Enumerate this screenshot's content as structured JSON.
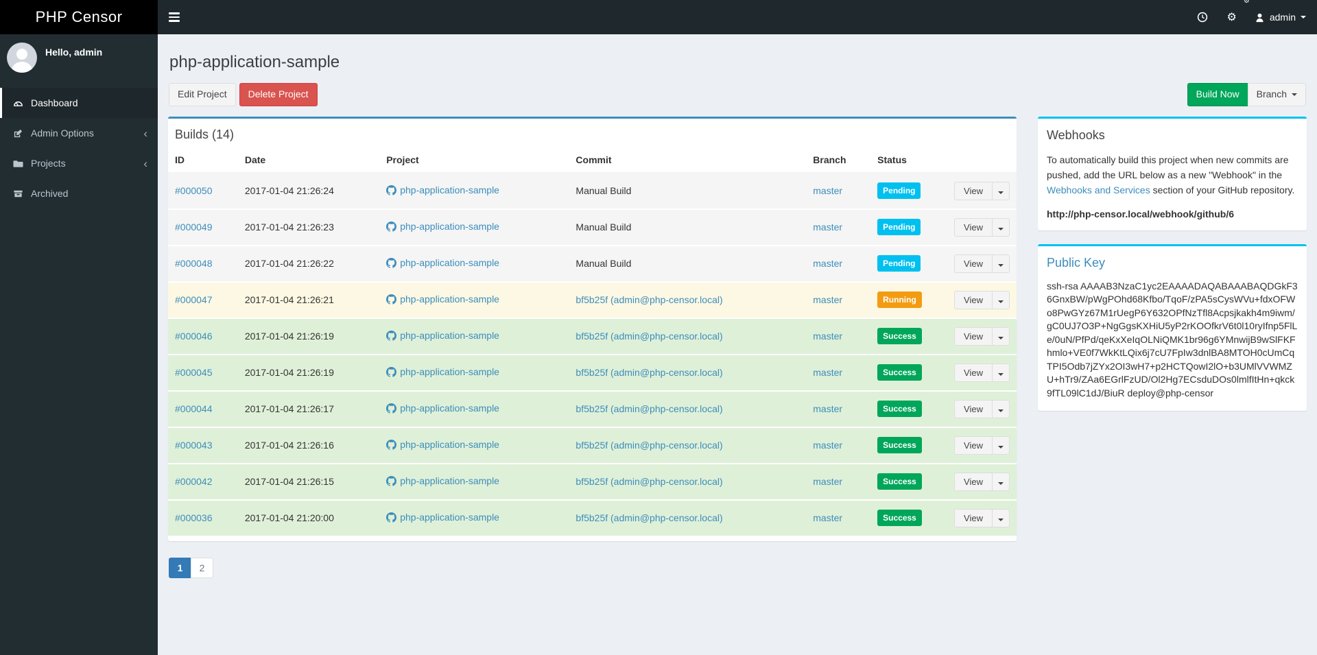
{
  "brand": {
    "name": "PHP Censor"
  },
  "navbar": {
    "username": "admin"
  },
  "sidebar": {
    "greeting": "Hello, admin",
    "items": [
      {
        "label": "Dashboard",
        "icon": "dashboard-icon",
        "active": true,
        "chevron": false
      },
      {
        "label": "Admin Options",
        "icon": "edit-icon",
        "active": false,
        "chevron": true
      },
      {
        "label": "Projects",
        "icon": "folder-icon",
        "active": false,
        "chevron": true
      },
      {
        "label": "Archived",
        "icon": "archive-icon",
        "active": false,
        "chevron": false
      }
    ],
    "chevron_glyph": "‹"
  },
  "page": {
    "title": "php-application-sample",
    "edit_button": "Edit Project",
    "delete_button": "Delete Project",
    "build_now_button": "Build Now",
    "branch_button": "Branch"
  },
  "builds": {
    "title": "Builds (14)",
    "columns": [
      "ID",
      "Date",
      "Project",
      "Commit",
      "Branch",
      "Status",
      ""
    ],
    "view_label": "View",
    "rows": [
      {
        "id": "#000050",
        "date": "2017-01-04 21:26:24",
        "project": "php-application-sample",
        "commit": "Manual Build",
        "commit_link": false,
        "branch": "master",
        "status": "Pending",
        "state": "pending"
      },
      {
        "id": "#000049",
        "date": "2017-01-04 21:26:23",
        "project": "php-application-sample",
        "commit": "Manual Build",
        "commit_link": false,
        "branch": "master",
        "status": "Pending",
        "state": "pending"
      },
      {
        "id": "#000048",
        "date": "2017-01-04 21:26:22",
        "project": "php-application-sample",
        "commit": "Manual Build",
        "commit_link": false,
        "branch": "master",
        "status": "Pending",
        "state": "pending"
      },
      {
        "id": "#000047",
        "date": "2017-01-04 21:26:21",
        "project": "php-application-sample",
        "commit": "bf5b25f (admin@php-censor.local)",
        "commit_link": true,
        "branch": "master",
        "status": "Running",
        "state": "running"
      },
      {
        "id": "#000046",
        "date": "2017-01-04 21:26:19",
        "project": "php-application-sample",
        "commit": "bf5b25f (admin@php-censor.local)",
        "commit_link": true,
        "branch": "master",
        "status": "Success",
        "state": "success"
      },
      {
        "id": "#000045",
        "date": "2017-01-04 21:26:19",
        "project": "php-application-sample",
        "commit": "bf5b25f (admin@php-censor.local)",
        "commit_link": true,
        "branch": "master",
        "status": "Success",
        "state": "success"
      },
      {
        "id": "#000044",
        "date": "2017-01-04 21:26:17",
        "project": "php-application-sample",
        "commit": "bf5b25f (admin@php-censor.local)",
        "commit_link": true,
        "branch": "master",
        "status": "Success",
        "state": "success"
      },
      {
        "id": "#000043",
        "date": "2017-01-04 21:26:16",
        "project": "php-application-sample",
        "commit": "bf5b25f (admin@php-censor.local)",
        "commit_link": true,
        "branch": "master",
        "status": "Success",
        "state": "success"
      },
      {
        "id": "#000042",
        "date": "2017-01-04 21:26:15",
        "project": "php-application-sample",
        "commit": "bf5b25f (admin@php-censor.local)",
        "commit_link": true,
        "branch": "master",
        "status": "Success",
        "state": "success"
      },
      {
        "id": "#000036",
        "date": "2017-01-04 21:20:00",
        "project": "php-application-sample",
        "commit": "bf5b25f (admin@php-censor.local)",
        "commit_link": true,
        "branch": "master",
        "status": "Success",
        "state": "success"
      }
    ],
    "pagination": [
      {
        "label": "1",
        "active": true
      },
      {
        "label": "2",
        "active": false
      }
    ]
  },
  "webhooks": {
    "title": "Webhooks",
    "text_before": "To automatically build this project when new commits are pushed, add the URL below as a new \"Webhook\" in the",
    "link_text": "Webhooks and Services",
    "text_after": "section of your GitHub repository.",
    "url": "http://php-censor.local/webhook/github/6"
  },
  "public_key": {
    "title": "Public Key",
    "key": "ssh-rsa AAAAB3NzaC1yc2EAAAADAQABAAABAQDGkF36GnxBW/pWgPOhd68Kfbo/TqoF/zPA5sCysWVu+fdxOFWo8PwGYz67M1rUegP6Y632OPfNzTfl8Acpsjkakh4m9iwm/gC0UJ7O3P+NgGgsKXHiU5yP2rKOOfkrV6t0l10ryIfnp5FlLe/0uN/PfPd/qeKxXeIqOLNiQMK1br96g6YMnwijB9wSlFKFhmlo+VE0f7WkKtLQix6j7cU7FpIw3dnlBA8MTOH0cUmCqTPI5Odb7jZYx2OI3wH7+p2HCTQowI2lO+b3UMlVVWMZU+hTr9/ZAa6EGrlFzUD/Ol2Hg7ECsduDOs0lmlfItHn+qkck9fTL09lC1dJ/BiuR deploy@php-censor"
  },
  "colors": {
    "navbar_bg": "#1f282d",
    "sidebar_bg": "#222d32",
    "logo_bg": "#000000",
    "content_bg": "#ecf0f5",
    "box_primary_border": "#3c8dbc",
    "box_info_border": "#00c0ef",
    "link": "#3c8dbc",
    "badge_pending": "#00c0ef",
    "badge_running": "#f39c12",
    "badge_success": "#00a65a",
    "row_pending": "#f5f5f5",
    "row_running": "#fcf8e3",
    "row_success": "#dff0d8",
    "btn_danger": "#d9534f",
    "btn_success": "#00a65a",
    "pagination_active": "#337ab7"
  }
}
